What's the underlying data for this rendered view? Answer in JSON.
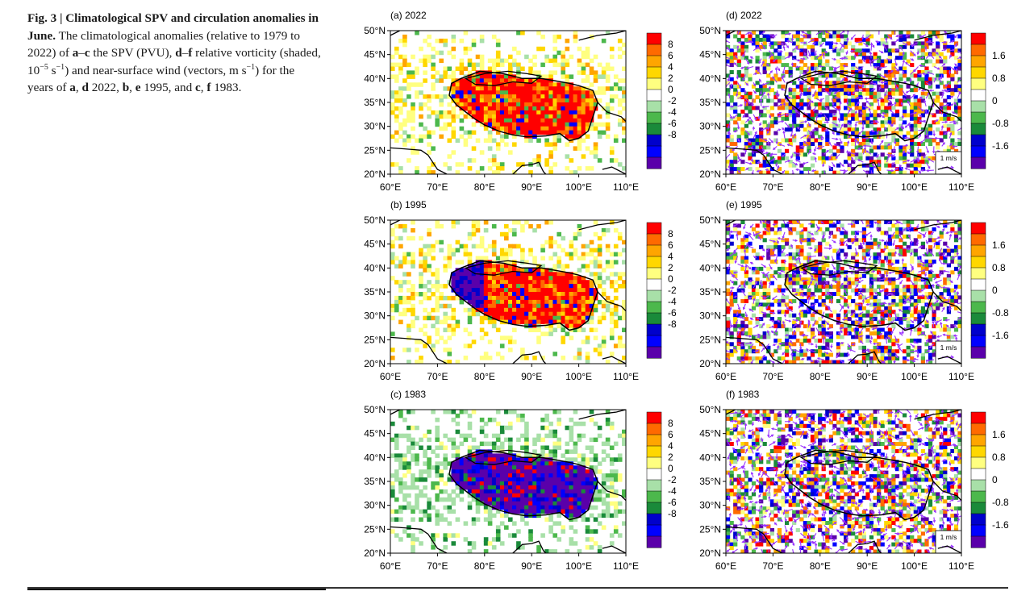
{
  "caption": {
    "title": "Fig. 3 | Climatological SPV and circulation anomalies in June.",
    "p1": "The climatological anomalies (relative to 1979 to 2022) of ",
    "b1": "a",
    "dash1": "–",
    "b2": "c",
    "p2": " the SPV (PVU), ",
    "b3": "d",
    "dash2": "–",
    "b4": "f",
    "p3": " relative vorticity (shaded, 10",
    "sup1": "−5",
    "p3b": " s",
    "sup2": "−1",
    "p4": ") and near-surface wind (vectors, m s",
    "sup3": "−1",
    "p5": ") for the years of ",
    "b5": "a",
    "p6": ", ",
    "b6": "d",
    "p7": " 2022, ",
    "b7": "b",
    "p8": ", ",
    "b8": "e",
    "p9": " 1995, and ",
    "b9": "c",
    "p10": ", ",
    "b10": "f",
    "p11": " 1983."
  },
  "axes": {
    "x_ticks": [
      "60°E",
      "70°E",
      "80°E",
      "90°E",
      "100°E",
      "110°E"
    ],
    "y_ticks": [
      "50°N",
      "45°N",
      "40°N",
      "35°N",
      "30°N",
      "25°N",
      "20°N"
    ]
  },
  "colorbars": {
    "spv_labels": [
      "8",
      "6",
      "4",
      "2",
      "0",
      "-2",
      "-4",
      "-6",
      "-8"
    ],
    "spv_colors": [
      "#ff0000",
      "#ff6a00",
      "#ffa500",
      "#ffd700",
      "#ffff80",
      "#ffffff",
      "#a8e0a8",
      "#4cb84c",
      "#1a8a3a",
      "#0000cc",
      "#0000ff",
      "#5a00aa"
    ],
    "vort_labels": [
      "1.6",
      "0.8",
      "0",
      "-0.8",
      "-1.6"
    ],
    "vort_colors": [
      "#ff0000",
      "#ff6a00",
      "#ffa500",
      "#ffd700",
      "#ffff80",
      "#ffffff",
      "#a8e0a8",
      "#4cb84c",
      "#1a8a3a",
      "#0000cc",
      "#0000ff",
      "#5a00aa"
    ]
  },
  "panels": [
    {
      "id": "a",
      "title": "(a) 2022",
      "type": "spv",
      "theme": "positive"
    },
    {
      "id": "b",
      "title": "(b) 1995",
      "type": "spv",
      "theme": "positive"
    },
    {
      "id": "c",
      "title": "(c) 1983",
      "type": "spv",
      "theme": "negative"
    },
    {
      "id": "d",
      "title": "(d) 2022",
      "type": "vort",
      "theme": "mixed"
    },
    {
      "id": "e",
      "title": "(e) 1995",
      "type": "vort",
      "theme": "mixed"
    },
    {
      "id": "f",
      "title": "(f) 1983",
      "type": "vort",
      "theme": "mixed"
    }
  ],
  "vector_legend": {
    "label": "1 m/s"
  }
}
